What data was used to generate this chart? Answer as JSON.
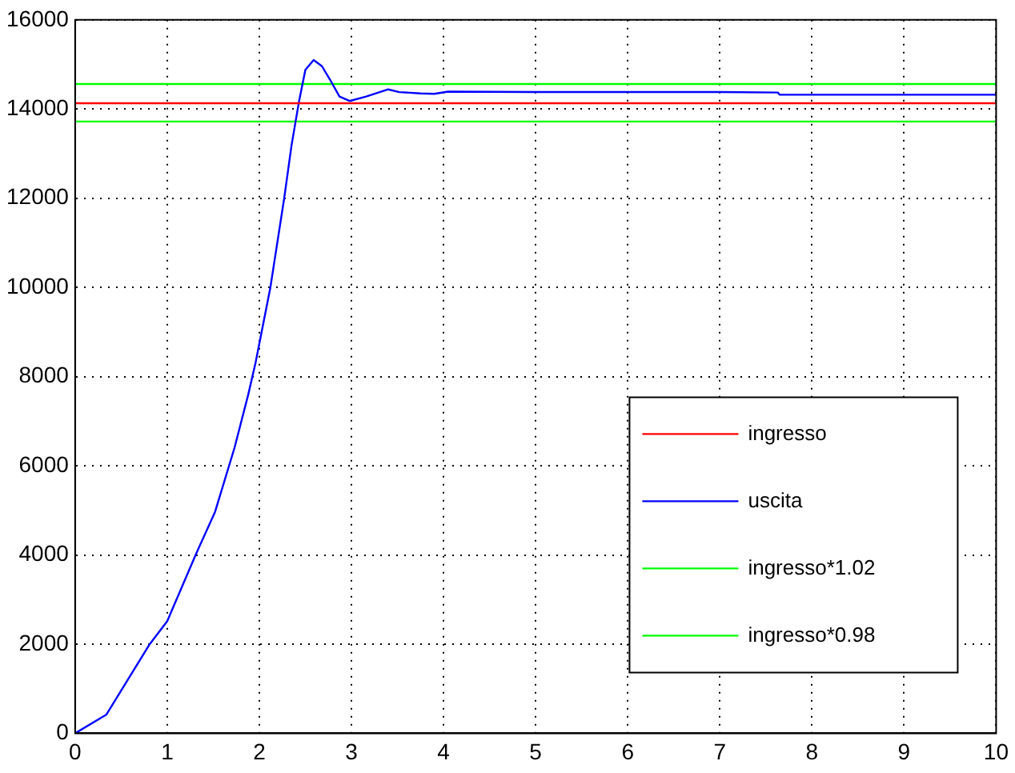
{
  "chart_data": {
    "type": "line",
    "xlim": [
      0,
      10
    ],
    "ylim": [
      0,
      16000
    ],
    "xticks": [
      0,
      1,
      2,
      3,
      4,
      5,
      6,
      7,
      8,
      9,
      10
    ],
    "yticks": [
      0,
      2000,
      4000,
      6000,
      8000,
      10000,
      12000,
      14000,
      16000
    ],
    "grid": true,
    "legend": "bottom right",
    "marker": "none",
    "line_style": "solid",
    "series": [
      {
        "name": "ingresso",
        "color": "#ff0000",
        "x": [
          0,
          10
        ],
        "values": [
          14130,
          14130
        ]
      },
      {
        "name": "uscita",
        "color": "#0000ff",
        "x": [
          0,
          0.34,
          0.81,
          1.0,
          1.31,
          1.52,
          1.73,
          1.88,
          1.96,
          2.12,
          2.27,
          2.35,
          2.43,
          2.5,
          2.59,
          2.68,
          2.77,
          2.87,
          2.98,
          3.16,
          3.4,
          3.52,
          3.75,
          3.9,
          4.05,
          5,
          6,
          7,
          7.63,
          7.65,
          8,
          9,
          10
        ],
        "values": [
          0,
          420,
          2000,
          2515,
          4010,
          4970,
          6400,
          7600,
          8320,
          10000,
          12000,
          13190,
          14160,
          14880,
          15100,
          14960,
          14650,
          14280,
          14180,
          14280,
          14440,
          14380,
          14350,
          14340,
          14390,
          14380,
          14380,
          14380,
          14370,
          14320,
          14320,
          14320,
          14320
        ]
      },
      {
        "name": "ingresso*1.02",
        "color": "#00ff00",
        "x": [
          0,
          10
        ],
        "values": [
          14560,
          14560
        ]
      },
      {
        "name": "ingresso*0.98",
        "color": "#00ff00",
        "x": [
          0,
          10
        ],
        "values": [
          13720,
          13720
        ]
      }
    ]
  }
}
